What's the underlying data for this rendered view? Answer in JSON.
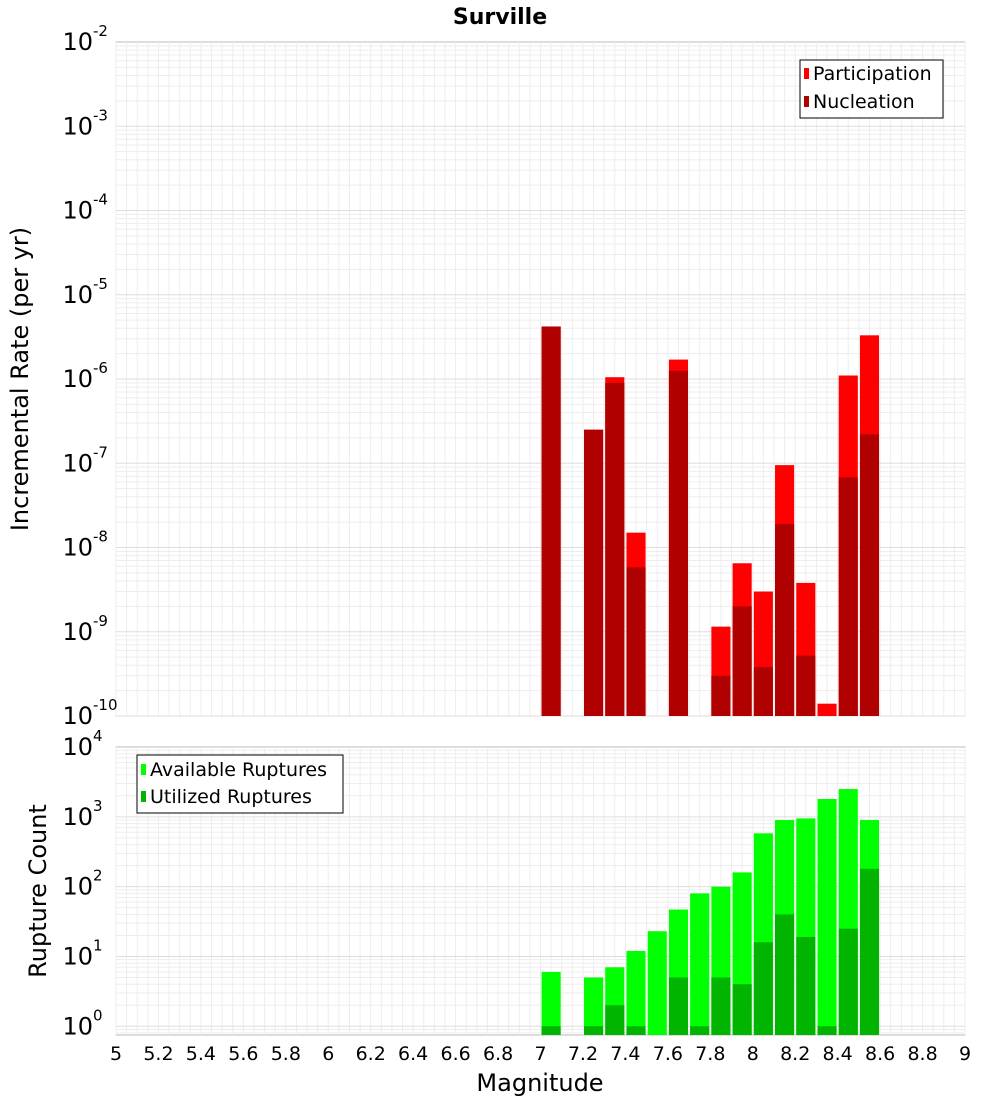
{
  "chart_data": [
    {
      "type": "bar",
      "title": "Surville",
      "xlabel": "",
      "ylabel": "Incremental Rate (per yr)",
      "yscale": "log",
      "ylim": [
        1e-10,
        0.01
      ],
      "xlim": [
        5,
        9
      ],
      "grid": true,
      "legend_position": "top-right",
      "y_ticks": [
        {
          "base": "10",
          "exp": "-10",
          "value": 1e-10
        },
        {
          "base": "10",
          "exp": "-9",
          "value": 1e-09
        },
        {
          "base": "10",
          "exp": "-8",
          "value": 1e-08
        },
        {
          "base": "10",
          "exp": "-7",
          "value": 1e-07
        },
        {
          "base": "10",
          "exp": "-6",
          "value": 1e-06
        },
        {
          "base": "10",
          "exp": "-5",
          "value": 1e-05
        },
        {
          "base": "10",
          "exp": "-4",
          "value": 0.0001
        },
        {
          "base": "10",
          "exp": "-3",
          "value": 0.001
        },
        {
          "base": "10",
          "exp": "-2",
          "value": 0.01
        }
      ],
      "x": [
        7.05,
        7.25,
        7.35,
        7.45,
        7.65,
        7.85,
        7.95,
        8.05,
        8.15,
        8.25,
        8.35,
        8.45,
        8.55
      ],
      "series": [
        {
          "name": "Participation",
          "color": "#ff0000",
          "values": [
            4.2e-06,
            2.5e-07,
            1.05e-06,
            1.5e-08,
            1.7e-06,
            1.15e-09,
            6.5e-09,
            3e-09,
            9.5e-08,
            3.8e-09,
            1.4e-10,
            1.1e-06,
            3.3e-06
          ]
        },
        {
          "name": "Nucleation",
          "color": "#b00000",
          "values": [
            4.2e-06,
            2.5e-07,
            9e-07,
            5.8e-09,
            1.25e-06,
            3e-10,
            2e-09,
            3.8e-10,
            1.9e-08,
            5.2e-10,
            null,
            6.8e-08,
            2.2e-07
          ]
        }
      ]
    },
    {
      "type": "bar",
      "title": "",
      "xlabel": "Magnitude",
      "ylabel": "Rupture Count",
      "yscale": "log",
      "ylim": [
        0.75,
        10000
      ],
      "xlim": [
        5,
        9
      ],
      "grid": true,
      "legend_position": "top-left",
      "x_ticks": [
        "5",
        "5.2",
        "5.4",
        "5.6",
        "5.8",
        "6",
        "6.2",
        "6.4",
        "6.6",
        "6.8",
        "7",
        "7.2",
        "7.4",
        "7.6",
        "7.8",
        "8",
        "8.2",
        "8.4",
        "8.6",
        "8.8",
        "9"
      ],
      "y_ticks": [
        {
          "base": "10",
          "exp": "0",
          "value": 1
        },
        {
          "base": "10",
          "exp": "1",
          "value": 10
        },
        {
          "base": "10",
          "exp": "2",
          "value": 100
        },
        {
          "base": "10",
          "exp": "3",
          "value": 1000
        },
        {
          "base": "10",
          "exp": "4",
          "value": 10000
        }
      ],
      "x": [
        7.05,
        7.25,
        7.35,
        7.45,
        7.55,
        7.65,
        7.75,
        7.85,
        7.95,
        8.05,
        8.15,
        8.25,
        8.35,
        8.45,
        8.55
      ],
      "series": [
        {
          "name": "Available Ruptures",
          "color": "#00ff00",
          "values": [
            6,
            5,
            7,
            12,
            23,
            47,
            80,
            100,
            160,
            580,
            900,
            950,
            1800,
            2500,
            900
          ]
        },
        {
          "name": "Utilized Ruptures",
          "color": "#00b400",
          "values": [
            1,
            1,
            2,
            1,
            null,
            5,
            1,
            5,
            4,
            16,
            40,
            19,
            1,
            25,
            180
          ]
        }
      ]
    }
  ]
}
